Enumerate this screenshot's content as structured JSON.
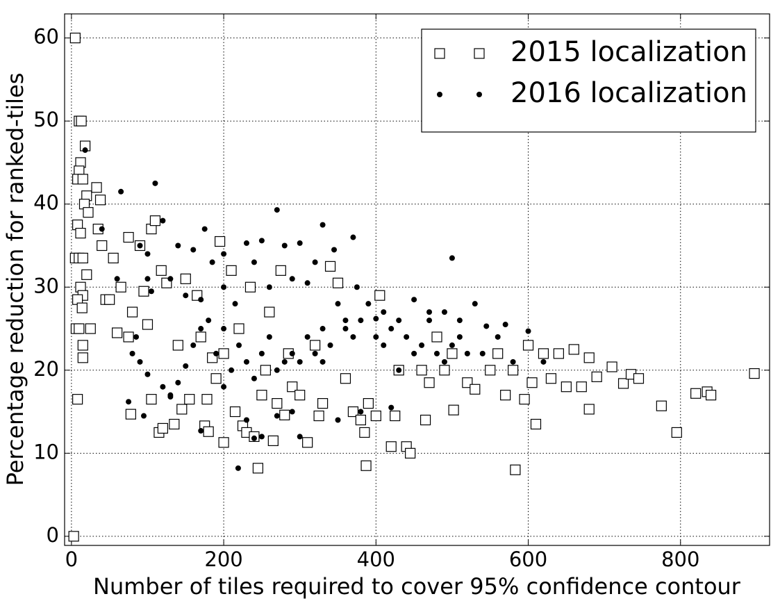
{
  "chart_data": {
    "type": "scatter",
    "x_label": "Number of tiles required to cover 95% confidence contour",
    "y_label": "Percentage reduction for ranked-tiles",
    "xlim": [
      -9,
      917
    ],
    "ylim": [
      -1.1,
      62.9
    ],
    "xticks": [
      0,
      200,
      400,
      600,
      800
    ],
    "yticks": [
      0,
      10,
      20,
      30,
      40,
      50,
      60
    ],
    "grid": true,
    "legend": "upper right",
    "series": [
      {
        "name": "2015 localization",
        "color": "#000000",
        "marker": "square",
        "x": [
          5,
          3,
          10,
          13,
          12,
          10,
          8,
          15,
          18,
          20,
          17,
          22,
          33,
          38,
          8,
          12,
          5,
          10,
          15,
          20,
          12,
          15,
          8,
          14,
          6,
          10,
          25,
          15,
          15,
          8,
          35,
          40,
          45,
          50,
          55,
          60,
          65,
          75,
          75,
          80,
          78,
          90,
          95,
          100,
          105,
          110,
          105,
          115,
          120,
          118,
          125,
          135,
          140,
          145,
          150,
          155,
          165,
          170,
          175,
          178,
          180,
          185,
          190,
          195,
          200,
          200,
          210,
          215,
          220,
          225,
          230,
          235,
          240,
          245,
          250,
          255,
          260,
          265,
          270,
          275,
          280,
          285,
          290,
          300,
          310,
          320,
          325,
          330,
          340,
          350,
          360,
          370,
          380,
          385,
          387,
          390,
          400,
          405,
          420,
          425,
          430,
          440,
          445,
          460,
          465,
          470,
          480,
          490,
          500,
          502,
          520,
          530,
          550,
          560,
          570,
          580,
          583,
          595,
          600,
          605,
          610,
          620,
          630,
          640,
          650,
          660,
          670,
          680,
          680,
          690,
          710,
          725,
          735,
          745,
          775,
          795,
          820,
          835,
          840,
          897
        ],
        "values": [
          60,
          0,
          50,
          50,
          45,
          44,
          43,
          43,
          47,
          41,
          40,
          39,
          42,
          40.5,
          37.5,
          36.5,
          33.5,
          33.5,
          33.5,
          31.5,
          30,
          29,
          28.5,
          27.5,
          25,
          25,
          25,
          23,
          21.5,
          16.5,
          37,
          35,
          28.5,
          28.5,
          33.5,
          24.5,
          30,
          24,
          36,
          27,
          14.7,
          35,
          29.5,
          25.5,
          37,
          38,
          16.5,
          12.5,
          13,
          32,
          30.5,
          13.5,
          23,
          15.3,
          31,
          16.5,
          29,
          24,
          13.3,
          16.5,
          12.6,
          21.5,
          19,
          35.5,
          22,
          11.3,
          32,
          15,
          25,
          13.3,
          12.5,
          30,
          12,
          8.2,
          17,
          20,
          27,
          11.5,
          16,
          32,
          14.6,
          22,
          18,
          17,
          11.3,
          23,
          14.5,
          16,
          32.5,
          30.5,
          19,
          15,
          14,
          12.5,
          8.5,
          16,
          14.5,
          29,
          10.8,
          14.5,
          20,
          10.8,
          10,
          20,
          14,
          18.5,
          24,
          20,
          22,
          15.2,
          18.5,
          17.7,
          20,
          22,
          17,
          20,
          8,
          16.5,
          23,
          18.5,
          13.5,
          22,
          19,
          22,
          18,
          22.5,
          18,
          21.5,
          15.3,
          19.2,
          20.4,
          18.4,
          19.5,
          19,
          15.7,
          12.5,
          17.2,
          17.4,
          17,
          19.6
        ]
      },
      {
        "name": "2016 localization",
        "color": "#000000",
        "marker": "dot",
        "x": [
          18,
          65,
          110,
          270,
          40,
          60,
          90,
          100,
          120,
          140,
          160,
          175,
          200,
          230,
          250,
          280,
          300,
          330,
          345,
          370,
          130,
          150,
          170,
          185,
          200,
          215,
          240,
          260,
          290,
          310,
          320,
          350,
          375,
          390,
          410,
          430,
          450,
          470,
          490,
          500,
          510,
          530,
          80,
          90,
          100,
          120,
          130,
          140,
          150,
          160,
          170,
          180,
          190,
          200,
          210,
          220,
          230,
          240,
          250,
          260,
          270,
          280,
          290,
          300,
          310,
          320,
          330,
          340,
          360,
          370,
          380,
          400,
          410,
          420,
          440,
          450,
          460,
          480,
          490,
          500,
          510,
          520,
          540,
          560,
          580,
          600,
          620,
          230,
          250,
          270,
          290,
          300,
          219,
          240,
          350,
          380,
          420,
          130,
          170,
          200,
          330,
          360,
          400,
          430,
          470,
          545,
          570,
          100,
          105,
          85,
          75,
          95
        ],
        "values": [
          46.5,
          41.5,
          42.5,
          39.3,
          37,
          31,
          35,
          34,
          38,
          35,
          34.5,
          37,
          34,
          35.3,
          35.6,
          35,
          35.3,
          37.5,
          34.5,
          36,
          31,
          29,
          28.5,
          33,
          30,
          28,
          33,
          30,
          31,
          30.5,
          33,
          28,
          30,
          28,
          27,
          26,
          28.5,
          27,
          27,
          33.5,
          26,
          28,
          22,
          21,
          19.5,
          18,
          17,
          18.5,
          20.5,
          23,
          25,
          26,
          22,
          25,
          20,
          23,
          21,
          19,
          22,
          24,
          20,
          21,
          22,
          21,
          24,
          22,
          25,
          23,
          25,
          24,
          26,
          24,
          23,
          25,
          24,
          22,
          23,
          22,
          21,
          23,
          24,
          22,
          22,
          24,
          21,
          24.7,
          21,
          14,
          12,
          14.5,
          15,
          12,
          8.2,
          11.8,
          14,
          15,
          15.5,
          16.8,
          12.7,
          18,
          21,
          26,
          26.2,
          20,
          26,
          25.3,
          25.5,
          31,
          29.5,
          24,
          16.2,
          14.5
        ]
      }
    ]
  }
}
